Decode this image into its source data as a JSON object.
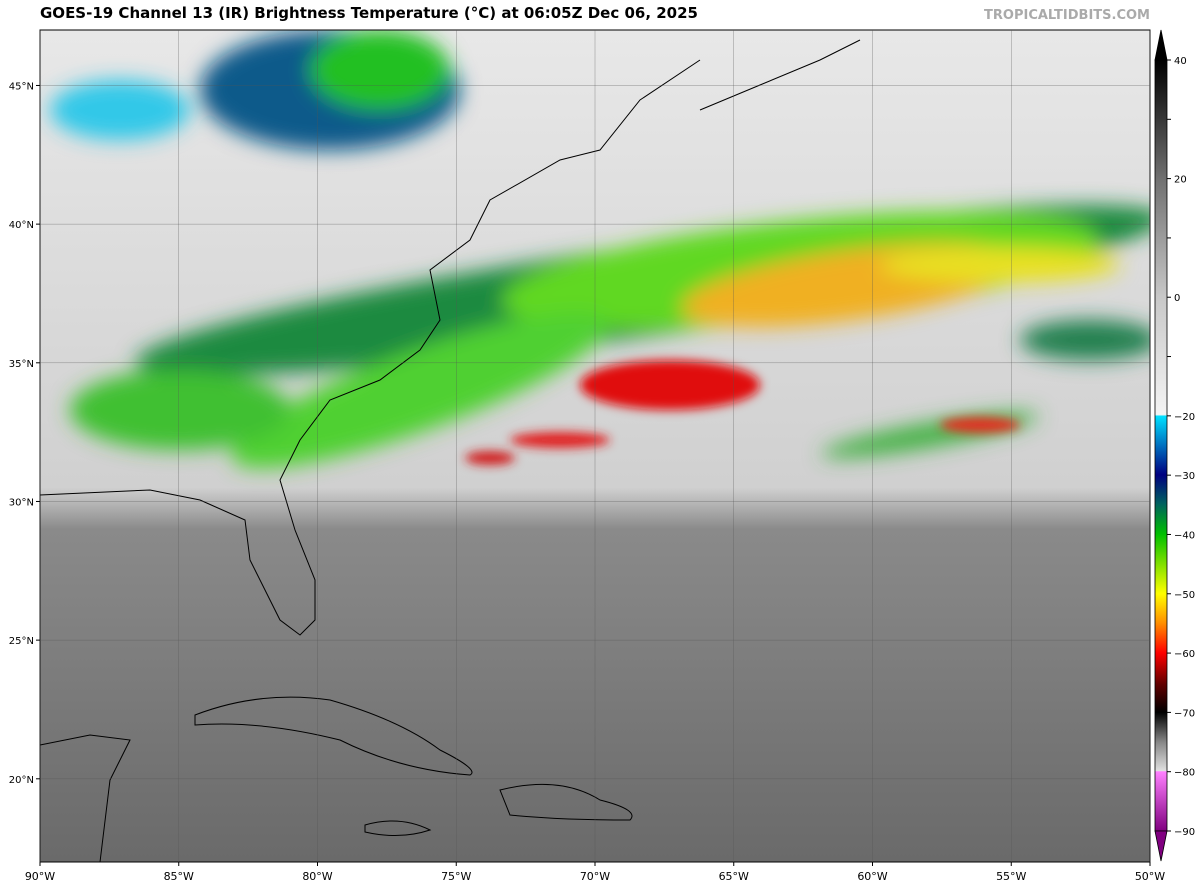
{
  "header": {
    "title": "GOES-19 Channel 13 (IR) Brightness Temperature (°C) at 06:05Z Dec 06, 2025",
    "watermark": "TROPICALTIDBITS.COM"
  },
  "map": {
    "xlim": [
      -90,
      -50
    ],
    "ylim": [
      17,
      47
    ],
    "xticks": [
      {
        "value": -90,
        "label": "90°W"
      },
      {
        "value": -85,
        "label": "85°W"
      },
      {
        "value": -80,
        "label": "80°W"
      },
      {
        "value": -75,
        "label": "75°W"
      },
      {
        "value": -70,
        "label": "70°W"
      },
      {
        "value": -65,
        "label": "65°W"
      },
      {
        "value": -60,
        "label": "60°W"
      },
      {
        "value": -55,
        "label": "55°W"
      },
      {
        "value": -50,
        "label": "50°W"
      }
    ],
    "yticks": [
      {
        "value": 20,
        "label": "20°N"
      },
      {
        "value": 25,
        "label": "25°N"
      },
      {
        "value": 30,
        "label": "30°N"
      },
      {
        "value": 35,
        "label": "35°N"
      },
      {
        "value": 40,
        "label": "40°N"
      },
      {
        "value": 45,
        "label": "45°N"
      }
    ]
  },
  "colorbar": {
    "ticks": [
      40,
      30,
      20,
      10,
      0,
      -10,
      -20,
      -30,
      -40,
      -50,
      -60,
      -70,
      -80,
      -90
    ],
    "labeled": [
      {
        "value": 40,
        "label": "40"
      },
      {
        "value": 20,
        "label": "20"
      },
      {
        "value": 0,
        "label": "0"
      },
      {
        "value": -20,
        "label": "−20"
      },
      {
        "value": -30,
        "label": "−30"
      },
      {
        "value": -40,
        "label": "−40"
      },
      {
        "value": -50,
        "label": "−50"
      },
      {
        "value": -60,
        "label": "−60"
      },
      {
        "value": -70,
        "label": "−70"
      },
      {
        "value": -80,
        "label": "−80"
      },
      {
        "value": -90,
        "label": "−90"
      }
    ]
  }
}
